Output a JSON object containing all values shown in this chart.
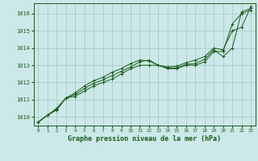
{
  "title": "Graphe pression niveau de la mer (hPa)",
  "bg_color": "#cce8e8",
  "grid_color": "#aacccc",
  "line_color": "#1a5c1a",
  "xlim": [
    -0.5,
    23.5
  ],
  "ylim": [
    1009.5,
    1016.6
  ],
  "yticks": [
    1010,
    1011,
    1012,
    1013,
    1014,
    1015,
    1016
  ],
  "xticks": [
    0,
    1,
    2,
    3,
    4,
    5,
    6,
    7,
    8,
    9,
    10,
    11,
    12,
    13,
    14,
    15,
    16,
    17,
    18,
    19,
    20,
    21,
    22,
    23
  ],
  "series": [
    [
      1009.7,
      1010.1,
      1010.4,
      1011.1,
      1011.2,
      1011.5,
      1011.8,
      1012.0,
      1012.2,
      1012.5,
      1012.8,
      1013.0,
      1013.0,
      1013.0,
      1012.8,
      1012.8,
      1013.0,
      1013.0,
      1013.2,
      1013.8,
      1013.8,
      1015.4,
      1016.0,
      1016.2
    ],
    [
      1009.7,
      1010.1,
      1010.45,
      1011.1,
      1011.3,
      1011.65,
      1011.95,
      1012.15,
      1012.4,
      1012.65,
      1012.9,
      1013.2,
      1013.3,
      1013.0,
      1012.85,
      1012.85,
      1013.05,
      1013.1,
      1013.35,
      1013.9,
      1013.5,
      1014.0,
      1016.1,
      1016.3
    ],
    [
      1009.7,
      1010.1,
      1010.5,
      1011.1,
      1011.4,
      1011.8,
      1012.1,
      1012.3,
      1012.6,
      1012.8,
      1013.1,
      1013.3,
      1013.25,
      1013.0,
      1012.9,
      1012.95,
      1013.15,
      1013.3,
      1013.5,
      1014.0,
      1013.9,
      1015.0,
      1015.2,
      1016.4
    ]
  ]
}
